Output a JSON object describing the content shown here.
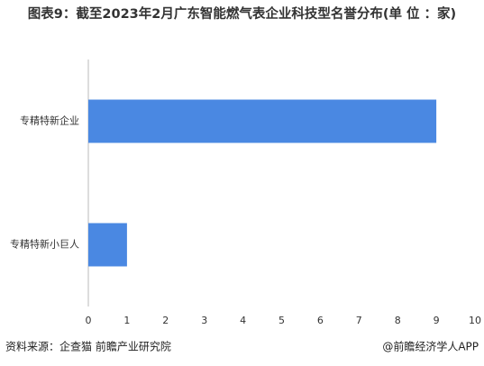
{
  "chart_data": {
    "type": "hbar",
    "title": "图表9：截至2023年2月广东智能燃气表企业科技型名誉分布(单 位 ：家)",
    "categories": [
      "专精特新企业",
      "专精特新小巨人"
    ],
    "values": [
      9,
      1
    ],
    "color": "#4a88e2",
    "xlim": [
      0,
      10
    ],
    "xticks": [
      0,
      1,
      2,
      3,
      4,
      5,
      6,
      7,
      8,
      9,
      10
    ],
    "source": "资料来源：企查猫 前瞻产业研究院",
    "credit": "@前瞻经济学人APP"
  }
}
